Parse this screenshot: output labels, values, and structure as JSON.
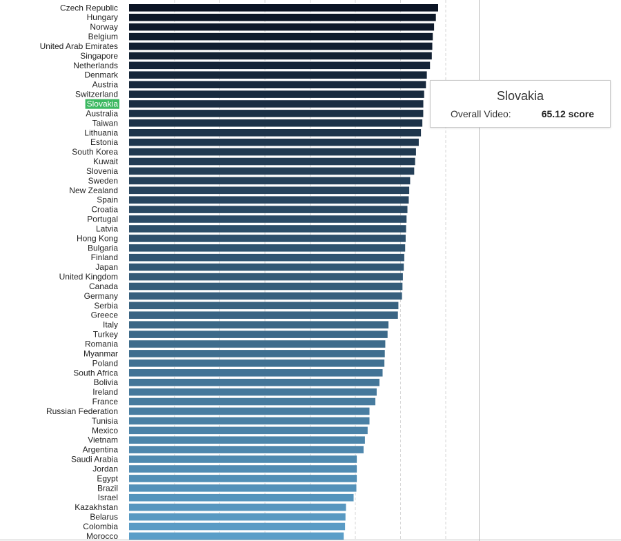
{
  "chart_data": {
    "type": "bar",
    "orientation": "horizontal",
    "categories": [
      "Czech Republic",
      "Hungary",
      "Norway",
      "Belgium",
      "United Arab Emirates",
      "Singapore",
      "Netherlands",
      "Denmark",
      "Austria",
      "Switzerland",
      "Slovakia",
      "Australia",
      "Taiwan",
      "Lithuania",
      "Estonia",
      "South Korea",
      "Kuwait",
      "Slovenia",
      "Sweden",
      "New Zealand",
      "Spain",
      "Croatia",
      "Portugal",
      "Latvia",
      "Hong Kong",
      "Bulgaria",
      "Finland",
      "Japan",
      "United Kingdom",
      "Canada",
      "Germany",
      "Serbia",
      "Greece",
      "Italy",
      "Turkey",
      "Romania",
      "Myanmar",
      "Poland",
      "South Africa",
      "Bolivia",
      "Ireland",
      "France",
      "Russian Federation",
      "Tunisia",
      "Mexico",
      "Vietnam",
      "Argentina",
      "Saudi Arabia",
      "Jordan",
      "Egypt",
      "Brazil",
      "Israel",
      "Kazakhstan",
      "Belarus",
      "Colombia",
      "Morocco"
    ],
    "values": [
      68.4,
      67.9,
      67.5,
      67.2,
      67.1,
      67.0,
      66.6,
      65.9,
      65.7,
      65.3,
      65.12,
      65.1,
      64.9,
      64.6,
      64.1,
      63.5,
      63.3,
      63.1,
      62.2,
      62.0,
      61.9,
      61.6,
      61.4,
      61.3,
      61.2,
      61.1,
      60.9,
      60.8,
      60.6,
      60.5,
      60.4,
      59.6,
      59.5,
      57.4,
      57.2,
      56.7,
      56.6,
      56.5,
      56.1,
      55.4,
      54.8,
      54.5,
      53.2,
      53.2,
      52.8,
      52.2,
      51.9,
      50.4,
      50.4,
      50.4,
      50.3,
      49.7,
      48.0,
      47.9,
      47.8,
      47.5
    ],
    "xlim": [
      0,
      77.6
    ],
    "grid": true,
    "highlight": "Slovakia",
    "colors": {
      "dark": "#0b1424",
      "light": "#5b9ec8",
      "highlight_label_bg": "#3cb861",
      "grid": "#d5d5d5"
    }
  },
  "tooltip": {
    "title": "Slovakia",
    "metric_label": "Overall Video:",
    "metric_value": "65.12 score"
  }
}
